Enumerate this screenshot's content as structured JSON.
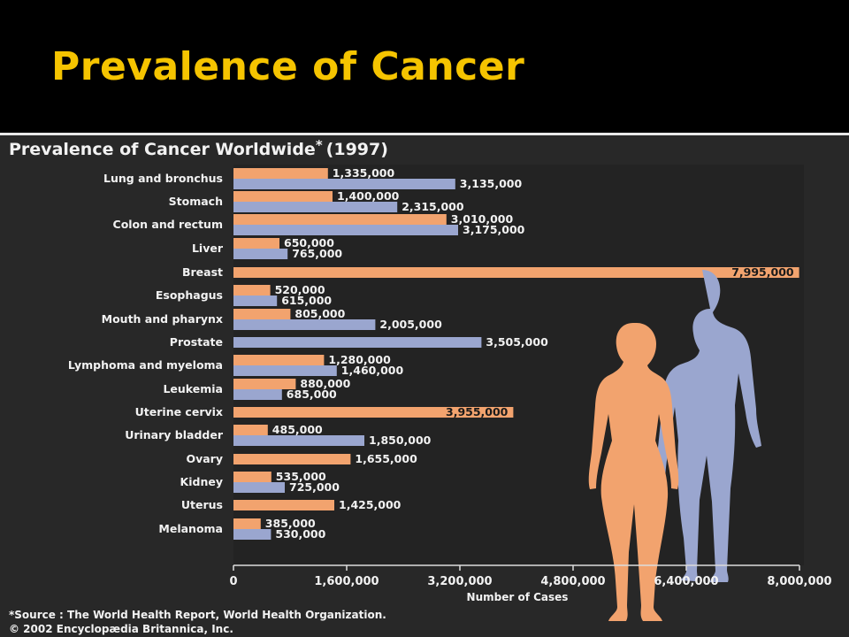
{
  "slide": {
    "title": "Prevalence of Cancer"
  },
  "colors": {
    "female": "#f2a36e",
    "male": "#9aa6cf",
    "title_color": "#f5c400",
    "panel_bg": "#282828"
  },
  "chart_data": {
    "type": "bar",
    "orientation": "horizontal",
    "title": "Prevalence of Cancer Worldwide",
    "title_marker": "*",
    "title_year": "(1997)",
    "xlabel": "Number of Cases",
    "xlim": [
      0,
      8000000
    ],
    "xticks": [
      0,
      1600000,
      3200000,
      4800000,
      6400000,
      8000000
    ],
    "xtick_labels": [
      "0",
      "1,600,000",
      "3,200,000",
      "4,800,000",
      "6,400,000",
      "8,000,000"
    ],
    "grid": false,
    "legend": "none",
    "categories": [
      "Lung and bronchus",
      "Stomach",
      "Colon and rectum",
      "Liver",
      "Breast",
      "Esophagus",
      "Mouth and pharynx",
      "Prostate",
      "Lymphoma and myeloma",
      "Leukemia",
      "Uterine cervix",
      "Urinary bladder",
      "Ovary",
      "Kidney",
      "Uterus",
      "Melanoma"
    ],
    "series": [
      {
        "color": "#f2a36e",
        "values": [
          1335000,
          1400000,
          3010000,
          650000,
          7995000,
          520000,
          805000,
          null,
          1280000,
          880000,
          3955000,
          485000,
          1655000,
          535000,
          1425000,
          385000
        ],
        "labels": [
          "1,335,000",
          "1,400,000",
          "3,010,000",
          "650,000",
          "7,995,000",
          "520,000",
          "805,000",
          "",
          "1,280,000",
          "880,000",
          "3,955,000",
          "485,000",
          "1,655,000",
          "535,000",
          "1,425,000",
          "385,000"
        ]
      },
      {
        "color": "#9aa6cf",
        "values": [
          3135000,
          2315000,
          3175000,
          765000,
          null,
          615000,
          2005000,
          3505000,
          1460000,
          685000,
          null,
          1850000,
          null,
          725000,
          null,
          530000
        ],
        "labels": [
          "3,135,000",
          "2,315,000",
          "3,175,000",
          "765,000",
          "",
          "615,000",
          "2,005,000",
          "3,505,000",
          "1,460,000",
          "685,000",
          "",
          "1,850,000",
          "",
          "725,000",
          "",
          "530,000"
        ]
      }
    ],
    "source_note": "*Source : The World Health Report, World Health Organization.",
    "copyright": "© 2002 Encyclopædia Britannica, Inc."
  }
}
